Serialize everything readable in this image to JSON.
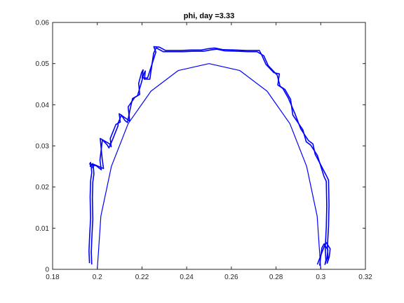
{
  "chart_data": {
    "type": "line",
    "title": "phi, day =3.33",
    "xlabel": "",
    "ylabel": "",
    "xlim": [
      0.18,
      0.32
    ],
    "ylim": [
      0,
      0.06
    ],
    "xticks": [
      0.18,
      0.2,
      0.22,
      0.24,
      0.26,
      0.28,
      0.3,
      0.32
    ],
    "xtick_labels": [
      "0.18",
      "0.2",
      "0.22",
      "0.24",
      "0.26",
      "0.28",
      "0.3",
      "0.32"
    ],
    "yticks": [
      0,
      0.01,
      0.02,
      0.03,
      0.04,
      0.05,
      0.06
    ],
    "ytick_labels": [
      "0",
      "0.01",
      "0.02",
      "0.03",
      "0.04",
      "0.05",
      "0.06"
    ],
    "grid": false,
    "legend": "none",
    "colors": {
      "series": "#0000ff",
      "axes": "#262626"
    },
    "series": [
      {
        "style": "thin",
        "x": [
          0.2,
          0.2016,
          0.2063,
          0.2138,
          0.224,
          0.2362,
          0.25,
          0.2638,
          0.276,
          0.2862,
          0.2937,
          0.2984,
          0.3
        ],
        "y": [
          0,
          0.0129,
          0.025,
          0.0354,
          0.0433,
          0.0483,
          0.05,
          0.0483,
          0.0433,
          0.0354,
          0.025,
          0.0129,
          0
        ]
      },
      {
        "style": "thick",
        "x": [
          0.1965,
          0.1963,
          0.1966,
          0.197,
          0.1968,
          0.197,
          0.1975,
          0.1972,
          0.1969,
          0.197,
          0.1966,
          0.1985,
          0.2028,
          0.2022,
          0.2013,
          0.2055,
          0.2062,
          0.2058,
          0.2083,
          0.2103,
          0.2098,
          0.2133,
          0.2145,
          0.2138,
          0.2168,
          0.219,
          0.2185,
          0.2198,
          0.2205,
          0.2201,
          0.2225,
          0.2262,
          0.2253,
          0.2278,
          0.2305,
          0.2345,
          0.2375,
          0.242,
          0.2465,
          0.2495,
          0.2525,
          0.256,
          0.262,
          0.2665,
          0.2725,
          0.2735,
          0.2755,
          0.279,
          0.2815,
          0.2808,
          0.283,
          0.2855,
          0.2885,
          0.291,
          0.2945,
          0.2965,
          0.2975,
          0.3025,
          0.3035,
          0.3037,
          0.3035,
          0.303,
          0.3033,
          0.3029,
          0.3038,
          0.3042,
          0.3025,
          0.3015,
          0.2985
        ],
        "y": [
          0.0015,
          0.0045,
          0.0085,
          0.0125,
          0.0175,
          0.0215,
          0.0235,
          0.0255,
          0.025,
          0.026,
          0.0256,
          0.0255,
          0.0245,
          0.0268,
          0.0318,
          0.0305,
          0.0298,
          0.0318,
          0.0352,
          0.0358,
          0.0378,
          0.0365,
          0.036,
          0.0395,
          0.0418,
          0.0425,
          0.0452,
          0.0478,
          0.0485,
          0.0465,
          0.0465,
          0.0528,
          0.0541,
          0.054,
          0.0532,
          0.0532,
          0.0532,
          0.0533,
          0.0533,
          0.0536,
          0.0538,
          0.0534,
          0.0533,
          0.0532,
          0.0532,
          0.0522,
          0.0498,
          0.0478,
          0.0475,
          0.0448,
          0.044,
          0.0416,
          0.0378,
          0.0342,
          0.0313,
          0.0305,
          0.028,
          0.0228,
          0.0217,
          0.0156,
          0.0105,
          0.0055,
          0.0025,
          0.0015,
          0.003,
          0.005,
          0.0065,
          0.0055,
          0.0012
        ]
      },
      {
        "style": "thick",
        "x": [
          0.1975,
          0.1973,
          0.1976,
          0.198,
          0.1978,
          0.198,
          0.1985,
          0.1982,
          0.1979,
          0.198,
          0.1976,
          0.1995,
          0.2018,
          0.2012,
          0.2023,
          0.2045,
          0.2052,
          0.2068,
          0.2093,
          0.2093,
          0.2108,
          0.2123,
          0.2135,
          0.2148,
          0.2158,
          0.218,
          0.2195,
          0.2208,
          0.2215,
          0.2211,
          0.2235,
          0.2252,
          0.2263,
          0.2268,
          0.2295,
          0.2335,
          0.2385,
          0.243,
          0.2475,
          0.2505,
          0.2535,
          0.257,
          0.263,
          0.2675,
          0.2715,
          0.2745,
          0.2765,
          0.28,
          0.2805,
          0.2818,
          0.284,
          0.2865,
          0.2875,
          0.292,
          0.2935,
          0.2955,
          0.2985,
          0.3015,
          0.3025,
          0.3027,
          0.3025,
          0.302,
          0.3023,
          0.3019,
          0.3028,
          0.3032,
          0.3015,
          0.3005,
          0.2995
        ],
        "y": [
          0.0012,
          0.0042,
          0.0082,
          0.0122,
          0.0172,
          0.0212,
          0.0232,
          0.0252,
          0.0247,
          0.0257,
          0.0253,
          0.0252,
          0.0242,
          0.0265,
          0.0315,
          0.0302,
          0.0295,
          0.0315,
          0.0349,
          0.0355,
          0.0375,
          0.0362,
          0.0357,
          0.0392,
          0.0415,
          0.0422,
          0.0449,
          0.0475,
          0.0482,
          0.0462,
          0.0462,
          0.0525,
          0.0538,
          0.0537,
          0.0529,
          0.0529,
          0.0529,
          0.053,
          0.053,
          0.0533,
          0.0535,
          0.0531,
          0.053,
          0.0529,
          0.0529,
          0.0519,
          0.0495,
          0.0475,
          0.0472,
          0.0445,
          0.0437,
          0.0413,
          0.0375,
          0.0339,
          0.031,
          0.0302,
          0.0277,
          0.0225,
          0.0214,
          0.0153,
          0.0102,
          0.0052,
          0.0022,
          0.0012,
          0.0027,
          0.0047,
          0.0062,
          0.0052,
          0.0009
        ]
      }
    ]
  }
}
